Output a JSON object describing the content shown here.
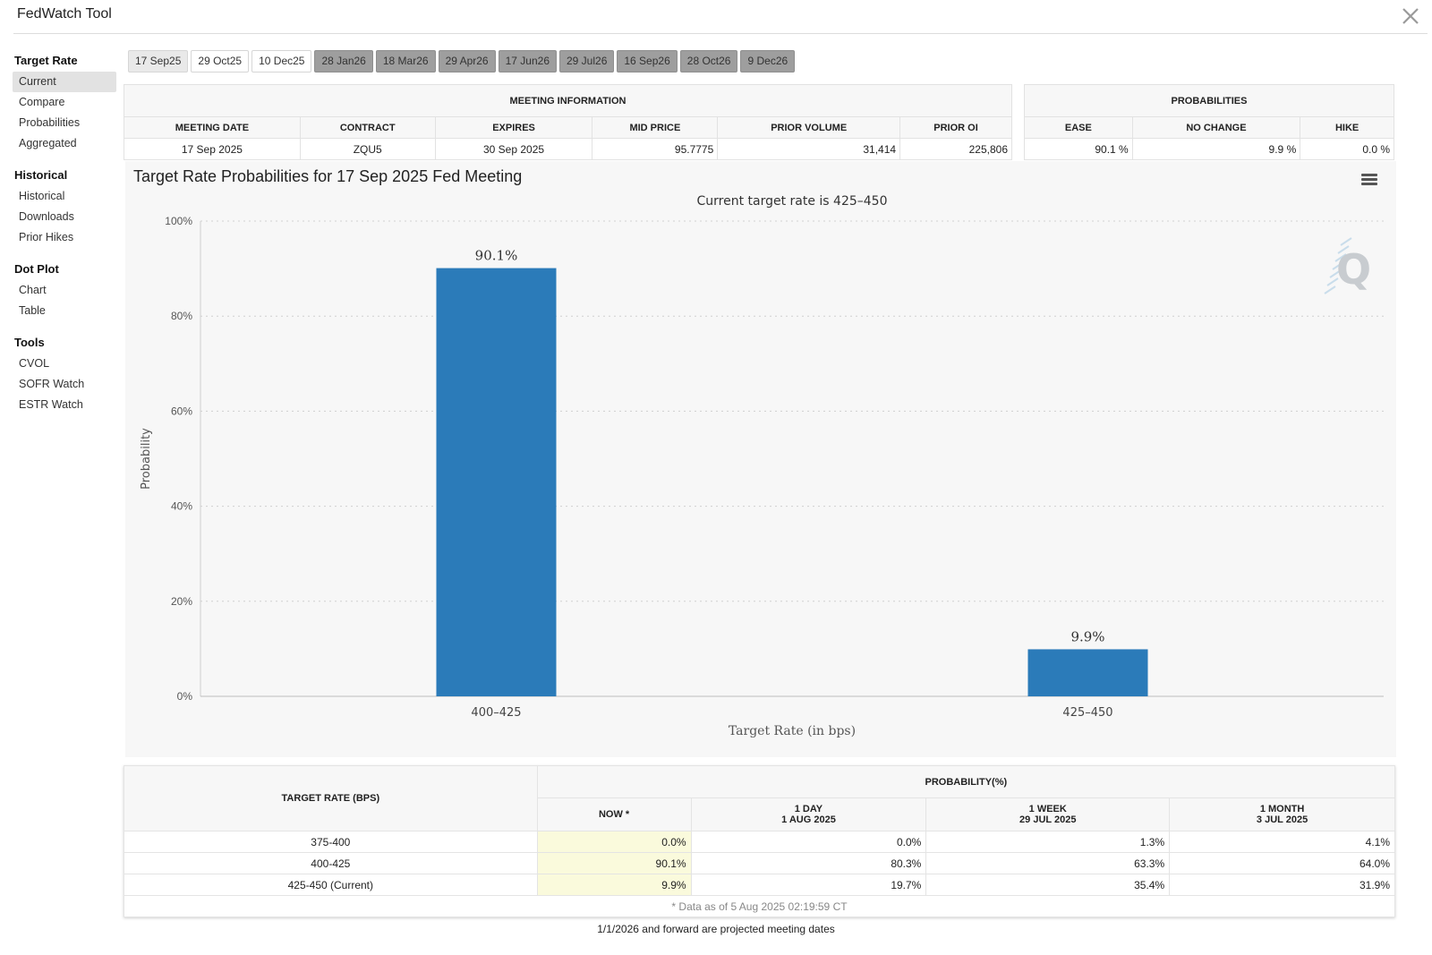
{
  "app": {
    "title": "FedWatch Tool",
    "close_icon": "close-x-icon"
  },
  "sidebar": {
    "sections": [
      {
        "heading": "Target Rate",
        "items": [
          "Current",
          "Compare",
          "Probabilities",
          "Aggregated"
        ],
        "active": "Current"
      },
      {
        "heading": "Historical",
        "items": [
          "Historical",
          "Downloads",
          "Prior Hikes"
        ]
      },
      {
        "heading": "Dot Plot",
        "items": [
          "Chart",
          "Table"
        ]
      },
      {
        "heading": "Tools",
        "items": [
          "CVOL",
          "SOFR Watch",
          "ESTR Watch"
        ]
      }
    ]
  },
  "tabs": [
    {
      "label": "17 Sep25",
      "state": "selected"
    },
    {
      "label": "29 Oct25",
      "state": "normal"
    },
    {
      "label": "10 Dec25",
      "state": "normal"
    },
    {
      "label": "28 Jan26",
      "state": "projected"
    },
    {
      "label": "18 Mar26",
      "state": "projected"
    },
    {
      "label": "29 Apr26",
      "state": "projected"
    },
    {
      "label": "17 Jun26",
      "state": "projected"
    },
    {
      "label": "29 Jul26",
      "state": "projected"
    },
    {
      "label": "16 Sep26",
      "state": "projected"
    },
    {
      "label": "28 Oct26",
      "state": "projected"
    },
    {
      "label": "9 Dec26",
      "state": "projected"
    }
  ],
  "meeting_info": {
    "heading": "MEETING INFORMATION",
    "columns": [
      "MEETING DATE",
      "CONTRACT",
      "EXPIRES",
      "MID PRICE",
      "PRIOR VOLUME",
      "PRIOR OI"
    ],
    "row": {
      "meeting_date": "17 Sep 2025",
      "contract": "ZQU5",
      "expires": "30 Sep 2025",
      "mid_price": "95.7775",
      "prior_volume": "31,414",
      "prior_oi": "225,806"
    }
  },
  "probabilities": {
    "heading": "PROBABILITIES",
    "columns": [
      "EASE",
      "NO CHANGE",
      "HIKE"
    ],
    "row": {
      "ease": "90.1 %",
      "no_change": "9.9 %",
      "hike": "0.0 %"
    }
  },
  "chart": {
    "title": "Target Rate Probabilities for 17 Sep 2025 Fed Meeting",
    "menu_icon": "hamburger-menu-icon",
    "watermark_icon": "q-logo-icon"
  },
  "chart_data": {
    "type": "bar",
    "title": "Target Rate Probabilities for 17 Sep 2025 Fed Meeting",
    "subtitle": "Current target rate is 425–450",
    "xlabel": "Target Rate (in bps)",
    "ylabel": "Probability",
    "categories": [
      "400–425",
      "425–450"
    ],
    "values": [
      90.1,
      9.9
    ],
    "data_labels": [
      "90.1%",
      "9.9%"
    ],
    "ylim": [
      0,
      100
    ],
    "yticks": [
      0,
      20,
      40,
      60,
      80,
      100
    ],
    "ytick_labels": [
      "0%",
      "20%",
      "40%",
      "60%",
      "80%",
      "100%"
    ],
    "grid": true,
    "bar_color": "#2b7bb9"
  },
  "prob_table": {
    "rate_header": "TARGET RATE (BPS)",
    "prob_header": "PROBABILITY(%)",
    "columns": [
      {
        "line1": "NOW *",
        "line2": ""
      },
      {
        "line1": "1 DAY",
        "line2": "1 AUG 2025"
      },
      {
        "line1": "1 WEEK",
        "line2": "29 JUL 2025"
      },
      {
        "line1": "1 MONTH",
        "line2": "3 JUL 2025"
      }
    ],
    "rows": [
      {
        "rate": "375-400",
        "now": "0.0%",
        "day": "0.0%",
        "week": "1.3%",
        "month": "4.1%"
      },
      {
        "rate": "400-425",
        "now": "90.1%",
        "day": "80.3%",
        "week": "63.3%",
        "month": "64.0%"
      },
      {
        "rate": "425-450 (Current)",
        "now": "9.9%",
        "day": "19.7%",
        "week": "35.4%",
        "month": "31.9%"
      }
    ],
    "data_note": "* Data as of 5 Aug 2025 02:19:59 CT"
  },
  "footnote": "1/1/2026 and forward are projected meeting dates"
}
